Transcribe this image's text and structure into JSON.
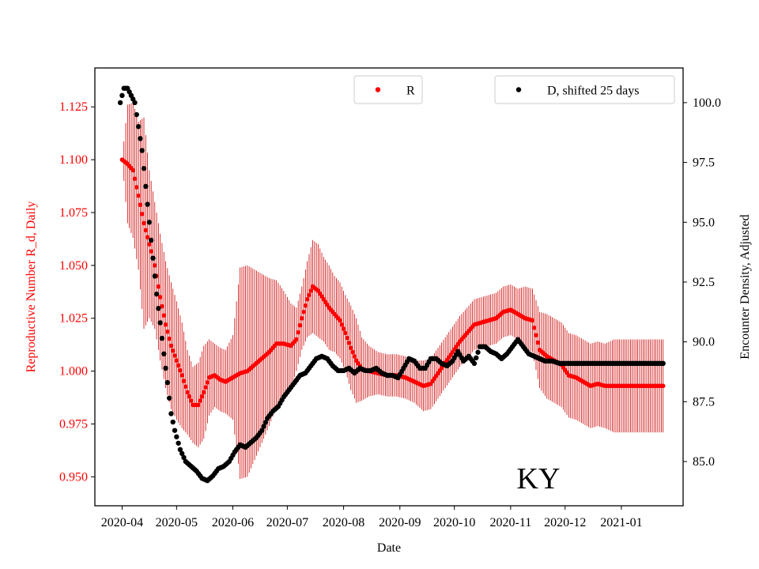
{
  "chart_data": {
    "type": "scatter",
    "xlabel": "Date",
    "ylabel_left": "Reproductive Number R_d, Daily",
    "ylabel_right": "Encounter Density, Adjusted",
    "annotation": "KY",
    "x_ticks": [
      "2020-04",
      "2020-05",
      "2020-06",
      "2020-07",
      "2020-08",
      "2020-09",
      "2020-10",
      "2020-11",
      "2020-12",
      "2021-01"
    ],
    "x_tick_dates": [
      "2020-04-01",
      "2020-05-01",
      "2020-06-01",
      "2020-07-01",
      "2020-08-01",
      "2020-09-01",
      "2020-10-01",
      "2020-11-01",
      "2020-12-01",
      "2021-01-01"
    ],
    "xlim": [
      "2020-03-17",
      "2021-02-04"
    ],
    "ylim_left": [
      0.9363,
      1.1434
    ],
    "ylim_right": [
      83.15,
      101.45
    ],
    "y_ticks_left": [
      "0.950",
      "0.975",
      "1.000",
      "1.025",
      "1.050",
      "1.075",
      "1.100",
      "1.125"
    ],
    "y_ticks_right": [
      "85.0",
      "87.5",
      "90.0",
      "92.5",
      "95.0",
      "97.5",
      "100.0"
    ],
    "legend": [
      {
        "label": "R",
        "location": "top-center",
        "color": "#ff0000"
      },
      {
        "label": "D, shifted 25 days",
        "location": "top-right",
        "color": "#000000"
      }
    ],
    "colors": {
      "R": "#ff0000",
      "D": "#000000",
      "errorbar": "#cc0000"
    },
    "series": [
      {
        "name": "R",
        "axis": "left",
        "marker": "dot",
        "points": [
          [
            "2020-04-01",
            1.1,
            0.0
          ],
          [
            "2020-04-04",
            1.098,
            0.028
          ],
          [
            "2020-04-07",
            1.095,
            0.032
          ],
          [
            "2020-04-10",
            1.083,
            0.035
          ],
          [
            "2020-04-13",
            1.07,
            0.05
          ],
          [
            "2020-04-16",
            1.06,
            0.035
          ],
          [
            "2020-04-19",
            1.05,
            0.03
          ],
          [
            "2020-04-22",
            1.035,
            0.03
          ],
          [
            "2020-04-25",
            1.022,
            0.03
          ],
          [
            "2020-04-28",
            1.012,
            0.03
          ],
          [
            "2020-05-01",
            1.005,
            0.028
          ],
          [
            "2020-05-04",
            0.998,
            0.025
          ],
          [
            "2020-05-07",
            0.99,
            0.02
          ],
          [
            "2020-05-10",
            0.984,
            0.018
          ],
          [
            "2020-05-13",
            0.984,
            0.02
          ],
          [
            "2020-05-16",
            0.99,
            0.022
          ],
          [
            "2020-05-19",
            0.997,
            0.018
          ],
          [
            "2020-05-22",
            0.998,
            0.015
          ],
          [
            "2020-05-25",
            0.996,
            0.015
          ],
          [
            "2020-05-28",
            0.995,
            0.015
          ],
          [
            "2020-06-01",
            0.997,
            0.02
          ],
          [
            "2020-06-05",
            0.999,
            0.05
          ],
          [
            "2020-06-09",
            1.0,
            0.05
          ],
          [
            "2020-06-13",
            1.003,
            0.045
          ],
          [
            "2020-06-17",
            1.006,
            0.04
          ],
          [
            "2020-06-21",
            1.009,
            0.035
          ],
          [
            "2020-06-25",
            1.013,
            0.03
          ],
          [
            "2020-06-29",
            1.013,
            0.025
          ],
          [
            "2020-07-03",
            1.012,
            0.02
          ],
          [
            "2020-07-06",
            1.015,
            0.015
          ],
          [
            "2020-07-09",
            1.025,
            0.015
          ],
          [
            "2020-07-12",
            1.034,
            0.018
          ],
          [
            "2020-07-15",
            1.04,
            0.022
          ],
          [
            "2020-07-18",
            1.038,
            0.022
          ],
          [
            "2020-07-21",
            1.034,
            0.02
          ],
          [
            "2020-07-24",
            1.03,
            0.02
          ],
          [
            "2020-07-27",
            1.027,
            0.018
          ],
          [
            "2020-07-30",
            1.024,
            0.018
          ],
          [
            "2020-08-02",
            1.018,
            0.018
          ],
          [
            "2020-08-05",
            1.011,
            0.02
          ],
          [
            "2020-08-08",
            1.005,
            0.02
          ],
          [
            "2020-08-11",
            1.001,
            0.015
          ],
          [
            "2020-08-15",
            1.0,
            0.012
          ],
          [
            "2020-08-20",
            0.999,
            0.01
          ],
          [
            "2020-08-25",
            0.998,
            0.01
          ],
          [
            "2020-08-30",
            0.998,
            0.01
          ],
          [
            "2020-09-04",
            0.997,
            0.01
          ],
          [
            "2020-09-09",
            0.995,
            0.01
          ],
          [
            "2020-09-14",
            0.993,
            0.012
          ],
          [
            "2020-09-18",
            0.994,
            0.012
          ],
          [
            "2020-09-22",
            0.999,
            0.012
          ],
          [
            "2020-09-26",
            1.004,
            0.012
          ],
          [
            "2020-09-30",
            1.009,
            0.012
          ],
          [
            "2020-10-04",
            1.014,
            0.012
          ],
          [
            "2020-10-08",
            1.018,
            0.012
          ],
          [
            "2020-10-12",
            1.022,
            0.012
          ],
          [
            "2020-10-16",
            1.023,
            0.012
          ],
          [
            "2020-10-20",
            1.024,
            0.012
          ],
          [
            "2020-10-24",
            1.025,
            0.012
          ],
          [
            "2020-10-28",
            1.028,
            0.012
          ],
          [
            "2020-11-01",
            1.029,
            0.012
          ],
          [
            "2020-11-05",
            1.027,
            0.012
          ],
          [
            "2020-11-09",
            1.025,
            0.015
          ],
          [
            "2020-11-13",
            1.024,
            0.015
          ],
          [
            "2020-11-17",
            1.01,
            0.018
          ],
          [
            "2020-11-21",
            1.007,
            0.02
          ],
          [
            "2020-11-25",
            1.005,
            0.02
          ],
          [
            "2020-11-29",
            1.003,
            0.02
          ],
          [
            "2020-12-03",
            0.998,
            0.02
          ],
          [
            "2020-12-07",
            0.997,
            0.02
          ],
          [
            "2020-12-11",
            0.995,
            0.02
          ],
          [
            "2020-12-15",
            0.993,
            0.02
          ],
          [
            "2020-12-19",
            0.994,
            0.02
          ],
          [
            "2020-12-23",
            0.993,
            0.02
          ],
          [
            "2020-12-28",
            0.993,
            0.022
          ],
          [
            "2021-01-02",
            0.993,
            0.022
          ],
          [
            "2021-01-08",
            0.993,
            0.022
          ],
          [
            "2021-01-14",
            0.993,
            0.022
          ],
          [
            "2021-01-20",
            0.993,
            0.022
          ],
          [
            "2021-01-24",
            0.993,
            0.022
          ]
        ]
      },
      {
        "name": "D, shifted 25 days",
        "axis": "right",
        "marker": "dot",
        "points": [
          [
            "2020-03-31",
            100.0
          ],
          [
            "2020-04-01",
            100.3
          ],
          [
            "2020-04-02",
            100.6
          ],
          [
            "2020-04-04",
            100.6
          ],
          [
            "2020-04-06",
            100.3
          ],
          [
            "2020-04-08",
            100.0
          ],
          [
            "2020-04-10",
            99.0
          ],
          [
            "2020-04-12",
            98.0
          ],
          [
            "2020-04-14",
            96.5
          ],
          [
            "2020-04-16",
            95.0
          ],
          [
            "2020-04-18",
            93.5
          ],
          [
            "2020-04-20",
            92.0
          ],
          [
            "2020-04-22",
            90.8
          ],
          [
            "2020-04-24",
            89.5
          ],
          [
            "2020-04-26",
            88.3
          ],
          [
            "2020-04-28",
            87.0
          ],
          [
            "2020-04-30",
            86.3
          ],
          [
            "2020-05-03",
            85.5
          ],
          [
            "2020-05-06",
            85.0
          ],
          [
            "2020-05-09",
            84.8
          ],
          [
            "2020-05-12",
            84.6
          ],
          [
            "2020-05-15",
            84.3
          ],
          [
            "2020-05-18",
            84.2
          ],
          [
            "2020-05-21",
            84.4
          ],
          [
            "2020-05-24",
            84.7
          ],
          [
            "2020-05-27",
            84.8
          ],
          [
            "2020-05-30",
            85.0
          ],
          [
            "2020-06-02",
            85.4
          ],
          [
            "2020-06-05",
            85.7
          ],
          [
            "2020-06-08",
            85.6
          ],
          [
            "2020-06-11",
            85.8
          ],
          [
            "2020-06-14",
            86.0
          ],
          [
            "2020-06-17",
            86.3
          ],
          [
            "2020-06-20",
            86.8
          ],
          [
            "2020-06-23",
            87.1
          ],
          [
            "2020-06-26",
            87.3
          ],
          [
            "2020-06-29",
            87.7
          ],
          [
            "2020-07-02",
            88.0
          ],
          [
            "2020-07-05",
            88.3
          ],
          [
            "2020-07-08",
            88.6
          ],
          [
            "2020-07-11",
            88.7
          ],
          [
            "2020-07-14",
            89.0
          ],
          [
            "2020-07-17",
            89.3
          ],
          [
            "2020-07-20",
            89.4
          ],
          [
            "2020-07-23",
            89.3
          ],
          [
            "2020-07-26",
            89.0
          ],
          [
            "2020-07-29",
            88.8
          ],
          [
            "2020-08-01",
            88.8
          ],
          [
            "2020-08-04",
            88.9
          ],
          [
            "2020-08-07",
            88.7
          ],
          [
            "2020-08-10",
            88.9
          ],
          [
            "2020-08-13",
            88.8
          ],
          [
            "2020-08-16",
            88.8
          ],
          [
            "2020-08-19",
            88.9
          ],
          [
            "2020-08-22",
            88.7
          ],
          [
            "2020-08-25",
            88.6
          ],
          [
            "2020-08-28",
            88.6
          ],
          [
            "2020-08-31",
            88.5
          ],
          [
            "2020-09-03",
            88.9
          ],
          [
            "2020-09-06",
            89.3
          ],
          [
            "2020-09-09",
            89.2
          ],
          [
            "2020-09-12",
            88.9
          ],
          [
            "2020-09-15",
            88.9
          ],
          [
            "2020-09-18",
            89.3
          ],
          [
            "2020-09-21",
            89.3
          ],
          [
            "2020-09-24",
            89.1
          ],
          [
            "2020-09-27",
            89.0
          ],
          [
            "2020-09-30",
            89.2
          ],
          [
            "2020-10-03",
            89.6
          ],
          [
            "2020-10-06",
            89.2
          ],
          [
            "2020-10-09",
            89.4
          ],
          [
            "2020-10-12",
            89.1
          ],
          [
            "2020-10-15",
            89.8
          ],
          [
            "2020-10-18",
            89.8
          ],
          [
            "2020-10-21",
            89.6
          ],
          [
            "2020-10-24",
            89.5
          ],
          [
            "2020-10-27",
            89.3
          ],
          [
            "2020-10-30",
            89.5
          ],
          [
            "2020-11-02",
            89.8
          ],
          [
            "2020-11-05",
            90.1
          ],
          [
            "2020-11-08",
            89.8
          ],
          [
            "2020-11-11",
            89.5
          ],
          [
            "2020-11-14",
            89.4
          ],
          [
            "2020-11-17",
            89.3
          ],
          [
            "2020-11-20",
            89.2
          ],
          [
            "2020-11-24",
            89.2
          ],
          [
            "2020-11-28",
            89.1
          ],
          [
            "2020-12-02",
            89.1
          ],
          [
            "2020-12-06",
            89.1
          ],
          [
            "2020-12-10",
            89.1
          ],
          [
            "2020-12-15",
            89.1
          ],
          [
            "2020-12-20",
            89.1
          ],
          [
            "2020-12-25",
            89.1
          ],
          [
            "2020-12-30",
            89.1
          ],
          [
            "2021-01-04",
            89.1
          ],
          [
            "2021-01-09",
            89.1
          ],
          [
            "2021-01-14",
            89.1
          ],
          [
            "2021-01-19",
            89.1
          ],
          [
            "2021-01-24",
            89.1
          ]
        ]
      }
    ]
  }
}
